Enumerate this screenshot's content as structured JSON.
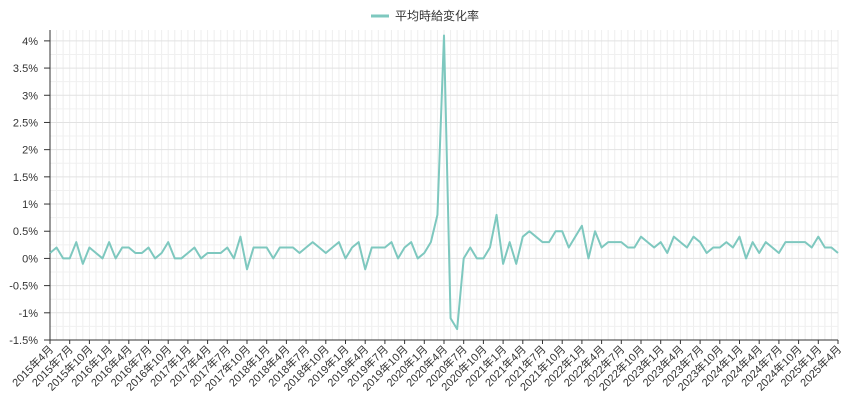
{
  "chart_data": {
    "type": "line",
    "legend": {
      "position": "top-center"
    },
    "grid": true,
    "ylim": [
      -1.5,
      4.2
    ],
    "y_ticks": [
      4,
      3.5,
      3,
      2.5,
      2,
      1.5,
      1,
      0.5,
      0,
      -0.5,
      -1,
      -1.5
    ],
    "y_tick_labels": [
      "4%",
      "3.5%",
      "3%",
      "2.5%",
      "2%",
      "1.5%",
      "1%",
      "0.5%",
      "0%",
      "-0.5%",
      "-1%",
      "-1.5%"
    ],
    "x_tick_labels": [
      "2015年4月",
      "2015年7月",
      "2015年10月",
      "2016年1月",
      "2016年4月",
      "2016年7月",
      "2016年10月",
      "2017年1月",
      "2017年4月",
      "2017年7月",
      "2017年10月",
      "2018年1月",
      "2018年4月",
      "2018年7月",
      "2018年10月",
      "2019年1月",
      "2019年4月",
      "2019年7月",
      "2019年10月",
      "2020年1月",
      "2020年4月",
      "2020年7月",
      "2020年10月",
      "2021年1月",
      "2021年4月",
      "2021年7月",
      "2021年10月",
      "2022年1月",
      "2022年4月",
      "2022年7月",
      "2022年10月",
      "2023年1月",
      "2023年4月",
      "2023年7月",
      "2023年10月",
      "2024年1月",
      "2024年4月",
      "2024年7月",
      "2024年10月",
      "2025年1月",
      "2025年4月"
    ],
    "series": [
      {
        "name": "平均時給変化率",
        "color": "#7ec8bf",
        "values": [
          0.1,
          0.2,
          0.0,
          0.0,
          0.3,
          -0.1,
          0.2,
          0.1,
          0.0,
          0.3,
          0.0,
          0.2,
          0.2,
          0.1,
          0.1,
          0.2,
          0.0,
          0.1,
          0.3,
          0.0,
          0.0,
          0.1,
          0.2,
          0.0,
          0.1,
          0.1,
          0.1,
          0.2,
          0.0,
          0.4,
          -0.2,
          0.2,
          0.2,
          0.2,
          0.0,
          0.2,
          0.2,
          0.2,
          0.1,
          0.2,
          0.3,
          0.2,
          0.1,
          0.2,
          0.3,
          0.0,
          0.2,
          0.3,
          -0.2,
          0.2,
          0.2,
          0.2,
          0.3,
          0.0,
          0.2,
          0.3,
          0.0,
          0.1,
          0.3,
          0.8,
          4.1,
          -1.1,
          -1.3,
          0.0,
          0.2,
          0.0,
          0.0,
          0.2,
          0.8,
          -0.1,
          0.3,
          -0.1,
          0.4,
          0.5,
          0.4,
          0.3,
          0.3,
          0.5,
          0.5,
          0.2,
          0.4,
          0.6,
          0.0,
          0.5,
          0.2,
          0.3,
          0.3,
          0.3,
          0.2,
          0.2,
          0.4,
          0.3,
          0.2,
          0.3,
          0.1,
          0.4,
          0.3,
          0.2,
          0.4,
          0.3,
          0.1,
          0.2,
          0.2,
          0.3,
          0.2,
          0.4,
          0.0,
          0.3,
          0.1,
          0.3,
          0.2,
          0.1,
          0.3,
          0.3,
          0.3,
          0.3,
          0.2,
          0.4,
          0.2,
          0.2,
          0.1
        ]
      }
    ]
  }
}
